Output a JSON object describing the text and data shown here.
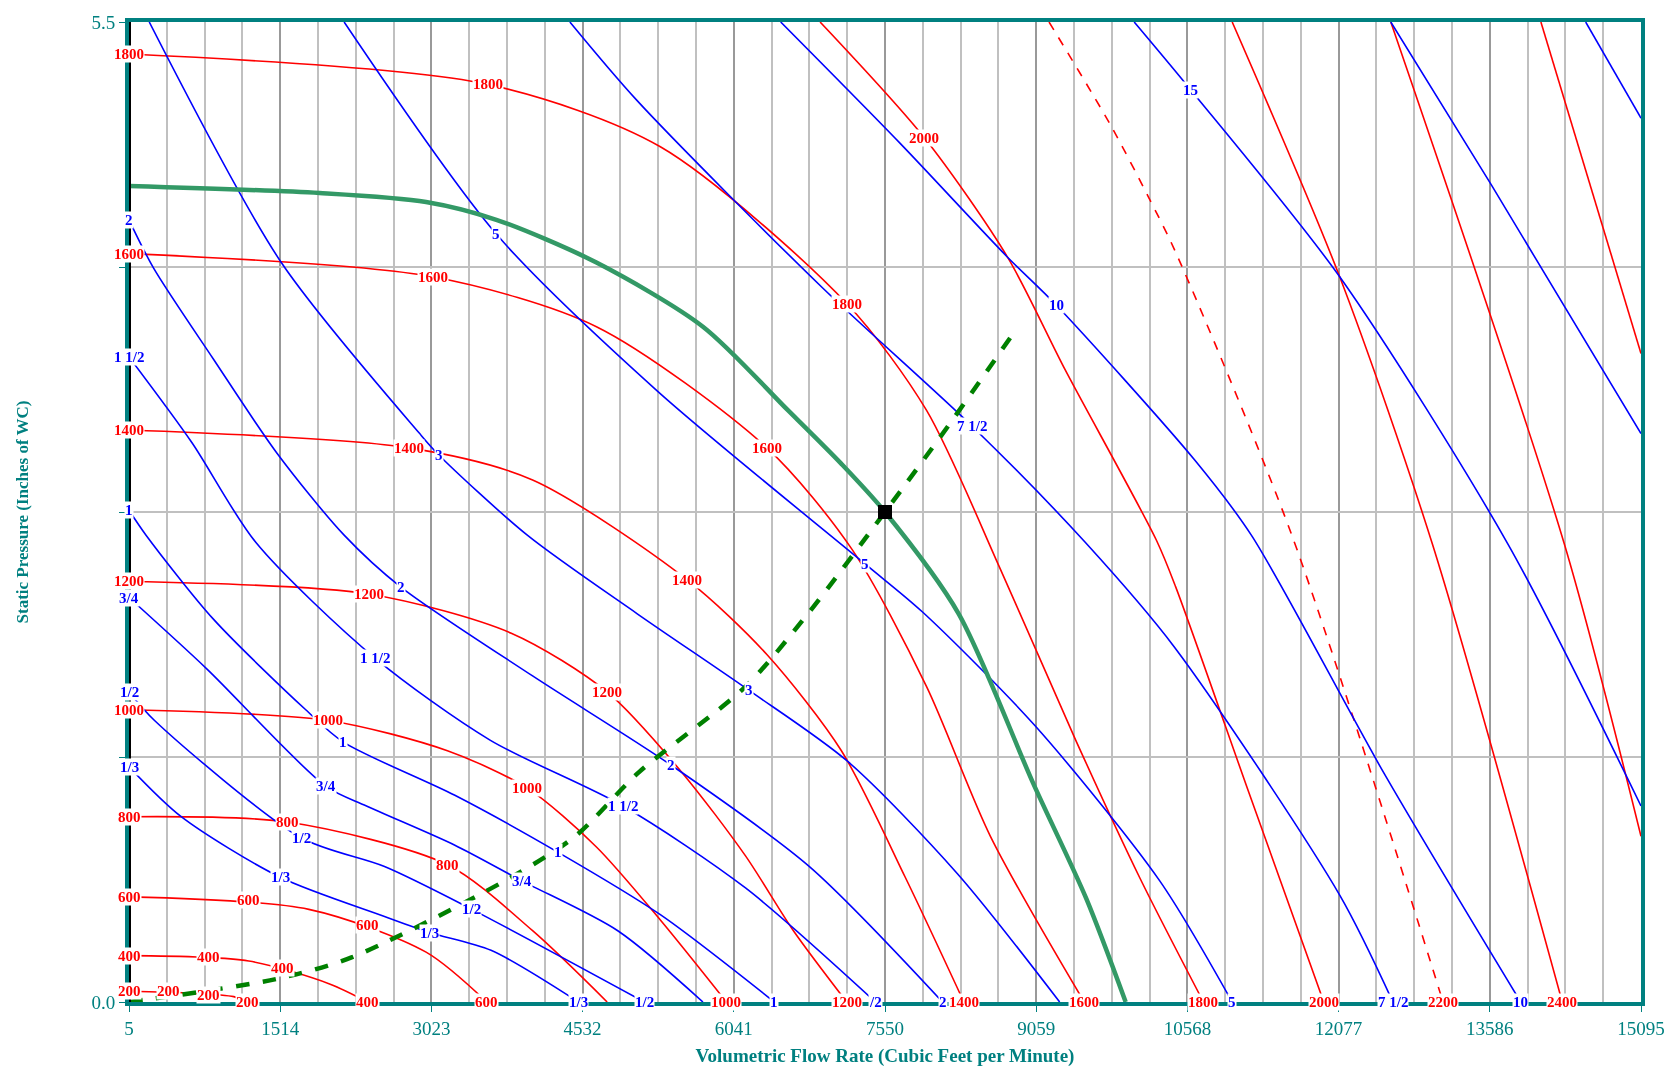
{
  "chart_data": {
    "type": "line",
    "xlabel": "Volumetric Flow Rate (Cubic Feet per Minute)",
    "ylabel": "Static Pressure (Inches of WC)",
    "xlim": [
      5,
      15095
    ],
    "ylim": [
      0,
      5.5
    ],
    "xticks": [
      5,
      {
        "value": 382.25,
        "label": null
      },
      {
        "value": 759.5,
        "label": null
      },
      {
        "value": 1136.75,
        "label": null
      },
      1514,
      {
        "value": 1891.25,
        "label": null
      },
      {
        "value": 2268.5,
        "label": null
      },
      {
        "value": 2645.75,
        "label": null
      },
      3023,
      {
        "value": 3400.25,
        "label": null
      },
      {
        "value": 3777.5,
        "label": null
      },
      {
        "value": 4154.75,
        "label": null
      },
      4532,
      {
        "value": 4909.25,
        "label": null
      },
      {
        "value": 5286.5,
        "label": null
      },
      {
        "value": 5663.75,
        "label": null
      },
      6041,
      {
        "value": 6418.25,
        "label": null
      },
      {
        "value": 6795.5,
        "label": null
      },
      {
        "value": 7172.75,
        "label": null
      },
      7550,
      {
        "value": 7927.25,
        "label": null
      },
      {
        "value": 8304.5,
        "label": null
      },
      {
        "value": 8681.75,
        "label": null
      },
      9059,
      {
        "value": 9436.25,
        "label": null
      },
      {
        "value": 9813.5,
        "label": null
      },
      {
        "value": 10190.75,
        "label": null
      },
      10568,
      {
        "value": 10945.25,
        "label": null
      },
      {
        "value": 11322.5,
        "label": null
      },
      {
        "value": 11699.75,
        "label": null
      },
      12077,
      {
        "value": 12454.25,
        "label": null
      },
      {
        "value": 12831.5,
        "label": null
      },
      {
        "value": 13208.75,
        "label": null
      },
      13586,
      {
        "value": 13963.25,
        "label": null
      },
      {
        "value": 14340.5,
        "label": null
      },
      {
        "value": 14717.75,
        "label": null
      },
      15095
    ],
    "yticks": [
      {
        "value": 0,
        "label": "0.0"
      },
      {
        "value": 1.375,
        "label": null
      },
      {
        "value": 2.75,
        "label": null
      },
      {
        "value": 4.125,
        "label": null
      },
      5.5
    ],
    "grid": true,
    "line_style": "solid",
    "series": [
      {
        "color": "#ff0000",
        "x": [
          5,
          590,
          1050,
          1185
        ],
        "values": [
          0.06,
          0.05,
          0.03,
          0
        ]
      },
      {
        "color": "#ff0000",
        "x": [
          5,
          1200,
          2013,
          2385
        ],
        "values": [
          0.26,
          0.23,
          0.1,
          0
        ]
      },
      {
        "color": "#ff0000",
        "x": [
          5,
          1800,
          2970,
          3576
        ],
        "values": [
          0.59,
          0.52,
          0.28,
          0
        ]
      },
      {
        "color": "#ff0000",
        "x": [
          5,
          1588,
          3183,
          4033,
          4777
        ],
        "values": [
          1.04,
          1.01,
          0.77,
          0.4,
          0
        ]
      },
      {
        "color": "#ff0000",
        "x": [
          5,
          1992,
          3183,
          3980,
          4670,
          5308,
          5967
        ],
        "values": [
          1.64,
          1.58,
          1.41,
          1.2,
          0.87,
          0.46,
          0
        ]
      },
      {
        "color": "#ff0000",
        "x": [
          5,
          2396,
          3820,
          4777,
          5521,
          6158,
          6636,
          7168
        ],
        "values": [
          2.36,
          2.29,
          2.07,
          1.74,
          1.29,
          0.82,
          0.4,
          0
        ]
      },
      {
        "color": "#ff0000",
        "x": [
          5,
          2800,
          4033,
          5574,
          6371,
          7115,
          7752,
          8337
        ],
        "values": [
          3.21,
          3.11,
          2.93,
          2.37,
          1.95,
          1.41,
          0.7,
          0
        ]
      },
      {
        "color": "#ff0000",
        "x": [
          5,
          3034,
          4670,
          6371,
          7221,
          7965,
          8602,
          9538
        ],
        "values": [
          4.2,
          4.07,
          3.79,
          3.11,
          2.54,
          1.77,
          0.93,
          0
        ]
      },
      {
        "color": "#ff0000",
        "x": [
          5,
          3586,
          5308,
          7168,
          7965,
          8709,
          9453,
          10090,
          10728
        ],
        "values": [
          5.32,
          5.15,
          4.8,
          3.92,
          3.32,
          2.42,
          1.47,
          0.7,
          0
        ]
      },
      {
        "color": "#ff0000",
        "x": [
          6902,
          7943,
          8773,
          9346,
          10260,
          10451,
          11185,
          11929
        ],
        "values": [
          5.5,
          4.85,
          4.18,
          3.55,
          2.59,
          2.33,
          1.17,
          0
        ]
      },
      {
        "color": "#ff0000",
        "line_style": "dashed",
        "x": [
          9187,
          9803,
          10186,
          10441,
          11610,
          13119
        ],
        "values": [
          5.5,
          4.92,
          4.51,
          4.22,
          2.62,
          0
        ]
      },
      {
        "color": "#ff0000",
        "x": [
          11015,
          12088,
          13013,
          14309
        ],
        "values": [
          5.5,
          4.07,
          2.57,
          0
        ]
      },
      {
        "color": "#ff0000",
        "x": [
          12598,
          14330,
          15095
        ],
        "values": [
          5.5,
          2.57,
          0.93
        ]
      },
      {
        "color": "#ff0000",
        "x": [
          14096,
          15095
        ],
        "values": [
          5.5,
          3.64
        ]
      },
      {
        "color": "#0000ff",
        "x": [
          5,
          526,
          1514,
          2555,
          3002,
          3618,
          4490
        ],
        "values": [
          1.32,
          1.04,
          0.7,
          0.48,
          0.39,
          0.29,
          0
        ]
      },
      {
        "color": "#0000ff",
        "x": [
          5,
          260,
          1727,
          2555,
          3427,
          5148
        ],
        "values": [
          1.74,
          1.58,
          0.92,
          0.76,
          0.52,
          0
        ]
      },
      {
        "color": "#0000ff",
        "x": [
          5,
          781,
          1971,
          2375,
          3257,
          3926,
          4883,
          5733
        ],
        "values": [
          2.27,
          1.87,
          1.21,
          1.1,
          0.88,
          0.68,
          0.4,
          0
        ]
      },
      {
        "color": "#0000ff",
        "x": [
          5,
          175,
          845,
          1769,
          2141,
          3257,
          4288,
          5308,
          6445
        ],
        "values": [
          2.76,
          2.62,
          2.15,
          1.64,
          1.46,
          1.16,
          0.84,
          0.49,
          0
        ]
      },
      {
        "color": "#0000ff",
        "x": [
          5,
          632,
          1270,
          2460,
          3608,
          4936,
          6158,
          7455
        ],
        "values": [
          3.62,
          3.14,
          2.58,
          1.93,
          1.47,
          1.1,
          0.64,
          0
        ]
      },
      {
        "color": "#0000ff",
        "x": [
          5,
          249,
          845,
          1482,
          2152,
          2715,
          4033,
          5414,
          6796,
          8124
        ],
        "values": [
          4.39,
          4.12,
          3.61,
          3.08,
          2.62,
          2.33,
          1.83,
          1.33,
          0.76,
          0
        ]
      },
      {
        "color": "#0000ff",
        "x": [
          207,
          1525,
          2906,
          3097,
          3980,
          5074,
          6190,
          7178,
          8273,
          9293
        ],
        "values": [
          5.5,
          4.15,
          3.19,
          3.07,
          2.62,
          2.18,
          1.75,
          1.35,
          0.72,
          0
        ]
      },
      {
        "color": "#0000ff",
        "x": [
          2152,
          3671,
          5276,
          7348,
          7922,
          9048,
          10292,
          11015
        ],
        "values": [
          5.5,
          4.31,
          3.43,
          2.46,
          2.19,
          1.55,
          0.68,
          0
        ]
      },
      {
        "color": "#0000ff",
        "x": [
          4405,
          5074,
          6923,
          8422,
          9548,
          10441,
          12088,
          12619
        ],
        "values": [
          5.5,
          5.06,
          4.01,
          3.23,
          2.58,
          1.99,
          0.6,
          0
        ]
      },
      {
        "color": "#0000ff",
        "x": [
          6509,
          7699,
          8773,
          9261,
          10643,
          11206,
          12534,
          13894
        ],
        "values": [
          5.5,
          4.82,
          4.18,
          3.91,
          3.04,
          2.62,
          1.28,
          0
        ]
      },
      {
        "color": "#0000ff",
        "x": [
          10037,
          10600,
          12088,
          13767,
          15095
        ],
        "values": [
          5.5,
          5.12,
          4.07,
          2.57,
          1.1
        ]
      },
      {
        "color": "#0000ff",
        "x": [
          12598,
          13597,
          15095
        ],
        "values": [
          5.5,
          4.59,
          3.19
        ]
      },
      {
        "color": "#0000ff",
        "x": [
          14543,
          15095
        ],
        "values": [
          5.5,
          4.96
        ]
      },
      {
        "color": "#339966",
        "x": [
          5,
          1907,
          2970,
          3671,
          4670,
          5733,
          6583,
          7115,
          7550,
          8284,
          9027,
          9559,
          9952
        ],
        "values": [
          4.58,
          4.54,
          4.49,
          4.39,
          4.15,
          3.79,
          3.32,
          3.02,
          2.75,
          2.18,
          1.23,
          0.58,
          0
        ]
      },
      {
        "color": "#008000",
        "line_style": "dashed",
        "x": [
          5,
          1482,
          2226,
          3820,
          4458,
          5095,
          6158,
          6796,
          7550,
          8177,
          8815
        ],
        "values": [
          0,
          0.13,
          0.25,
          0.7,
          0.93,
          1.29,
          1.77,
          2.19,
          2.75,
          3.23,
          3.74
        ]
      },
      {
        "type": "scatter",
        "marker": "square",
        "color": "#000000",
        "x": [
          7550
        ],
        "values": [
          2.75
        ]
      }
    ],
    "annotations": [
      {
        "text": "200",
        "x": 5,
        "y": 0.06
      },
      {
        "text": "200",
        "x": 398,
        "y": 0.06
      },
      {
        "text": "200",
        "x": 802,
        "y": 0.04
      },
      {
        "text": "200",
        "x": 1185,
        "y": 0
      },
      {
        "text": "400",
        "x": 5,
        "y": 0.26
      },
      {
        "text": "400",
        "x": 802,
        "y": 0.25
      },
      {
        "text": "400",
        "x": 1535,
        "y": 0.19
      },
      {
        "text": "400",
        "x": 2385,
        "y": 0
      },
      {
        "text": "600",
        "x": 5,
        "y": 0.59
      },
      {
        "text": "600",
        "x": 1195,
        "y": 0.57
      },
      {
        "text": "600",
        "x": 2385,
        "y": 0.43
      },
      {
        "text": "600",
        "x": 3576,
        "y": 0
      },
      {
        "text": "800",
        "x": 5,
        "y": 1.04
      },
      {
        "text": "800",
        "x": 1588,
        "y": 1.01
      },
      {
        "text": "800",
        "x": 3183,
        "y": 0.77
      },
      {
        "text": "1000",
        "x": 5,
        "y": 1.64
      },
      {
        "text": "1000",
        "x": 1992,
        "y": 1.58
      },
      {
        "text": "1000",
        "x": 3980,
        "y": 1.2
      },
      {
        "text": "1000",
        "x": 5967,
        "y": 0
      },
      {
        "text": "1200",
        "x": 5,
        "y": 2.36
      },
      {
        "text": "1200",
        "x": 2396,
        "y": 2.29
      },
      {
        "text": "1200",
        "x": 4777,
        "y": 1.74
      },
      {
        "text": "1200",
        "x": 7168,
        "y": 0
      },
      {
        "text": "1400",
        "x": 5,
        "y": 3.21
      },
      {
        "text": "1400",
        "x": 2800,
        "y": 3.11
      },
      {
        "text": "1400",
        "x": 5574,
        "y": 2.37
      },
      {
        "text": "1400",
        "x": 8337,
        "y": 0
      },
      {
        "text": "1600",
        "x": 5,
        "y": 4.2
      },
      {
        "text": "1600",
        "x": 3034,
        "y": 4.07
      },
      {
        "text": "1600",
        "x": 6371,
        "y": 3.11
      },
      {
        "text": "1600",
        "x": 9538,
        "y": 0
      },
      {
        "text": "1800",
        "x": 5,
        "y": 5.32
      },
      {
        "text": "1800",
        "x": 3586,
        "y": 5.15
      },
      {
        "text": "1800",
        "x": 7168,
        "y": 3.92
      },
      {
        "text": "1800",
        "x": 10728,
        "y": 0
      },
      {
        "text": "2000",
        "x": 7943,
        "y": 4.85
      },
      {
        "text": "2000",
        "x": 11929,
        "y": 0
      },
      {
        "text": "2200",
        "x": 13119,
        "y": 0
      },
      {
        "text": "2400",
        "x": 14309,
        "y": 0
      },
      {
        "text": "1/3",
        "x": 5,
        "y": 1.32
      },
      {
        "text": "1/3",
        "x": 1514,
        "y": 0.7
      },
      {
        "text": "1/3",
        "x": 3002,
        "y": 0.39
      },
      {
        "text": "1/3",
        "x": 4490,
        "y": 0
      },
      {
        "text": "1/2",
        "x": 5,
        "y": 1.74
      },
      {
        "text": "1/2",
        "x": 1727,
        "y": 0.92
      },
      {
        "text": "1/2",
        "x": 3427,
        "y": 0.52
      },
      {
        "text": "1/2",
        "x": 5148,
        "y": 0
      },
      {
        "text": "3/4",
        "x": 5,
        "y": 2.27
      },
      {
        "text": "3/4",
        "x": 1971,
        "y": 1.21
      },
      {
        "text": "3/4",
        "x": 3926,
        "y": 0.68
      },
      {
        "text": "1",
        "x": 5,
        "y": 2.76
      },
      {
        "text": "1",
        "x": 2141,
        "y": 1.46
      },
      {
        "text": "1",
        "x": 4288,
        "y": 0.84
      },
      {
        "text": "1",
        "x": 6445,
        "y": 0
      },
      {
        "text": "1 1/2",
        "x": 5,
        "y": 3.62
      },
      {
        "text": "1 1/2",
        "x": 2460,
        "y": 1.93
      },
      {
        "text": "1 1/2",
        "x": 4936,
        "y": 1.1
      },
      {
        "text": "/2",
        "x": 7455,
        "y": 0
      },
      {
        "text": "2",
        "x": 5,
        "y": 4.39
      },
      {
        "text": "2",
        "x": 2715,
        "y": 2.33
      },
      {
        "text": "2",
        "x": 5414,
        "y": 1.33
      },
      {
        "text": "2",
        "x": 8124,
        "y": 0
      },
      {
        "text": "3",
        "x": 3097,
        "y": 3.07
      },
      {
        "text": "3",
        "x": 6190,
        "y": 1.75
      },
      {
        "text": "5",
        "x": 3671,
        "y": 4.31
      },
      {
        "text": "5",
        "x": 7348,
        "y": 2.46
      },
      {
        "text": "5",
        "x": 11015,
        "y": 0
      },
      {
        "text": "7 1/2",
        "x": 8422,
        "y": 3.23
      },
      {
        "text": "7 1/2",
        "x": 12619,
        "y": 0
      },
      {
        "text": "10",
        "x": 9261,
        "y": 3.91
      },
      {
        "text": "10",
        "x": 13894,
        "y": 0
      },
      {
        "text": "15",
        "x": 10600,
        "y": 5.12
      }
    ]
  }
}
